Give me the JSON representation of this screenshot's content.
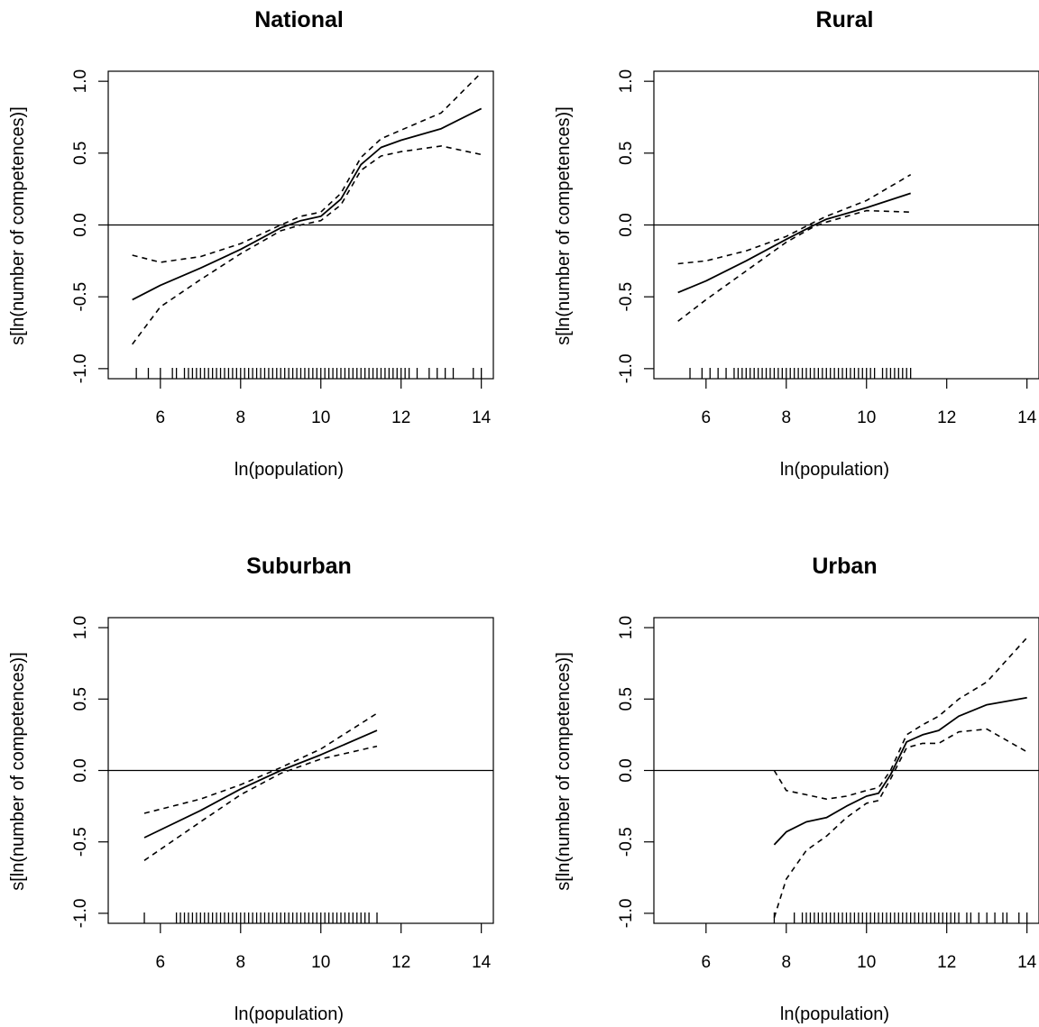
{
  "chart_data": [
    {
      "type": "line",
      "title": "National",
      "xlabel": "ln(population)",
      "ylabel": "s[ln(number of competences)]",
      "xlim": [
        4.7,
        14.3
      ],
      "ylim": [
        -1.07,
        1.07
      ],
      "xticks": [
        "6",
        "8",
        "10",
        "12",
        "14"
      ],
      "yticks": [
        "-1.0",
        "-0.5",
        "0.0",
        "0.5",
        "1.0"
      ],
      "reference_line": 0,
      "series": [
        {
          "style": "solid",
          "x": [
            5.3,
            6.0,
            7.0,
            8.0,
            9.0,
            9.5,
            10.0,
            10.5,
            11.0,
            11.5,
            12.0,
            13.0,
            14.0
          ],
          "y": [
            -0.52,
            -0.42,
            -0.3,
            -0.17,
            -0.02,
            0.03,
            0.06,
            0.18,
            0.42,
            0.54,
            0.59,
            0.67,
            0.81
          ]
        },
        {
          "style": "dashed",
          "x": [
            5.3,
            6.0,
            7.0,
            8.0,
            9.0,
            9.5,
            10.0,
            10.5,
            11.0,
            11.5,
            12.0,
            13.0,
            14.0
          ],
          "y": [
            -0.21,
            -0.26,
            -0.22,
            -0.13,
            0.0,
            0.06,
            0.09,
            0.22,
            0.47,
            0.6,
            0.66,
            0.78,
            1.06
          ]
        },
        {
          "style": "dashed",
          "x": [
            5.3,
            6.0,
            7.0,
            8.0,
            9.0,
            9.5,
            10.0,
            10.5,
            11.0,
            11.5,
            12.0,
            13.0,
            14.0
          ],
          "y": [
            -0.83,
            -0.57,
            -0.38,
            -0.2,
            -0.04,
            0.0,
            0.03,
            0.14,
            0.38,
            0.48,
            0.51,
            0.55,
            0.49
          ]
        }
      ],
      "rug": [
        5.4,
        5.7,
        6.0,
        6.3,
        6.4,
        6.6,
        6.7,
        6.8,
        6.9,
        7.0,
        7.1,
        7.2,
        7.3,
        7.4,
        7.5,
        7.6,
        7.7,
        7.8,
        7.9,
        8.0,
        8.1,
        8.2,
        8.3,
        8.4,
        8.5,
        8.6,
        8.7,
        8.8,
        8.9,
        9.0,
        9.1,
        9.2,
        9.3,
        9.4,
        9.5,
        9.6,
        9.7,
        9.8,
        9.9,
        10.0,
        10.1,
        10.2,
        10.3,
        10.4,
        10.5,
        10.6,
        10.7,
        10.8,
        10.9,
        11.0,
        11.1,
        11.2,
        11.3,
        11.4,
        11.5,
        11.6,
        11.7,
        11.8,
        11.9,
        12.0,
        12.1,
        12.2,
        12.4,
        12.7,
        12.9,
        13.1,
        13.3,
        13.8,
        14.0
      ]
    },
    {
      "type": "line",
      "title": "Rural",
      "xlabel": "ln(population)",
      "ylabel": "s[ln(number of competences)]",
      "xlim": [
        4.7,
        14.3
      ],
      "ylim": [
        -1.07,
        1.07
      ],
      "xticks": [
        "6",
        "8",
        "10",
        "12",
        "14"
      ],
      "yticks": [
        "-1.0",
        "-0.5",
        "0.0",
        "0.5",
        "1.0"
      ],
      "reference_line": 0,
      "series": [
        {
          "style": "solid",
          "x": [
            5.3,
            6.0,
            7.0,
            8.0,
            8.7,
            9.0,
            10.0,
            11.1
          ],
          "y": [
            -0.47,
            -0.39,
            -0.25,
            -0.1,
            0.0,
            0.04,
            0.12,
            0.22
          ]
        },
        {
          "style": "dashed",
          "x": [
            5.3,
            6.0,
            7.0,
            8.0,
            8.7,
            9.0,
            10.0,
            11.1
          ],
          "y": [
            -0.27,
            -0.25,
            -0.18,
            -0.08,
            0.02,
            0.06,
            0.17,
            0.35
          ]
        },
        {
          "style": "dashed",
          "x": [
            5.3,
            6.0,
            7.0,
            8.0,
            8.7,
            9.0,
            10.0,
            11.1
          ],
          "y": [
            -0.67,
            -0.52,
            -0.32,
            -0.12,
            -0.01,
            0.02,
            0.1,
            0.09
          ]
        }
      ],
      "rug": [
        5.6,
        5.9,
        6.1,
        6.3,
        6.5,
        6.7,
        6.8,
        6.9,
        7.0,
        7.1,
        7.2,
        7.3,
        7.4,
        7.5,
        7.6,
        7.7,
        7.8,
        7.9,
        8.0,
        8.1,
        8.2,
        8.3,
        8.4,
        8.5,
        8.6,
        8.7,
        8.8,
        8.9,
        9.0,
        9.1,
        9.2,
        9.3,
        9.4,
        9.5,
        9.6,
        9.7,
        9.8,
        9.9,
        10.0,
        10.1,
        10.2,
        10.4,
        10.5,
        10.6,
        10.7,
        10.8,
        10.9,
        11.0,
        11.1
      ]
    },
    {
      "type": "line",
      "title": "Suburban",
      "xlabel": "ln(population)",
      "ylabel": "s[ln(number of competences)]",
      "xlim": [
        4.7,
        14.3
      ],
      "ylim": [
        -1.07,
        1.07
      ],
      "xticks": [
        "6",
        "8",
        "10",
        "12",
        "14"
      ],
      "yticks": [
        "-1.0",
        "-0.5",
        "0.0",
        "0.5",
        "1.0"
      ],
      "reference_line": 0,
      "series": [
        {
          "style": "solid",
          "x": [
            5.6,
            7.0,
            8.0,
            9.0,
            10.0,
            11.4
          ],
          "y": [
            -0.47,
            -0.28,
            -0.13,
            0.0,
            0.11,
            0.28
          ]
        },
        {
          "style": "dashed",
          "x": [
            5.6,
            7.0,
            8.0,
            9.0,
            10.0,
            11.4
          ],
          "y": [
            -0.3,
            -0.2,
            -0.1,
            0.02,
            0.15,
            0.4
          ]
        },
        {
          "style": "dashed",
          "x": [
            5.6,
            7.0,
            8.0,
            9.0,
            10.0,
            11.4
          ],
          "y": [
            -0.63,
            -0.36,
            -0.17,
            -0.02,
            0.08,
            0.17
          ]
        }
      ],
      "rug": [
        5.6,
        6.4,
        6.5,
        6.6,
        6.7,
        6.8,
        6.9,
        7.0,
        7.1,
        7.2,
        7.3,
        7.4,
        7.5,
        7.6,
        7.7,
        7.8,
        7.9,
        8.0,
        8.1,
        8.2,
        8.3,
        8.4,
        8.5,
        8.6,
        8.7,
        8.8,
        8.9,
        9.0,
        9.1,
        9.2,
        9.3,
        9.4,
        9.5,
        9.6,
        9.7,
        9.8,
        9.9,
        10.0,
        10.1,
        10.2,
        10.3,
        10.4,
        10.5,
        10.6,
        10.7,
        10.8,
        10.9,
        11.0,
        11.1,
        11.2,
        11.4
      ]
    },
    {
      "type": "line",
      "title": "Urban",
      "xlabel": "ln(population)",
      "ylabel": "s[ln(number of competences)]",
      "xlim": [
        4.7,
        14.3
      ],
      "ylim": [
        -1.07,
        1.07
      ],
      "xticks": [
        "6",
        "8",
        "10",
        "12",
        "14"
      ],
      "yticks": [
        "-1.0",
        "-0.5",
        "0.0",
        "0.5",
        "1.0"
      ],
      "reference_line": 0,
      "series": [
        {
          "style": "solid",
          "x": [
            7.7,
            8.0,
            8.5,
            9.0,
            9.5,
            10.0,
            10.3,
            10.6,
            11.0,
            11.4,
            11.8,
            12.3,
            13.0,
            14.0
          ],
          "y": [
            -0.52,
            -0.43,
            -0.36,
            -0.33,
            -0.25,
            -0.18,
            -0.16,
            -0.03,
            0.2,
            0.25,
            0.28,
            0.38,
            0.46,
            0.51
          ]
        },
        {
          "style": "dashed",
          "x": [
            7.7,
            8.0,
            8.5,
            9.0,
            9.5,
            10.0,
            10.3,
            10.6,
            11.0,
            11.4,
            11.8,
            12.3,
            13.0,
            14.0
          ],
          "y": [
            0.0,
            -0.14,
            -0.17,
            -0.2,
            -0.18,
            -0.14,
            -0.12,
            0.0,
            0.25,
            0.32,
            0.38,
            0.5,
            0.62,
            0.93
          ]
        },
        {
          "style": "dashed",
          "x": [
            7.7,
            8.0,
            8.5,
            9.0,
            9.5,
            10.0,
            10.3,
            10.6,
            11.0,
            11.4,
            11.8,
            12.3,
            13.0,
            14.0
          ],
          "y": [
            -1.03,
            -0.76,
            -0.56,
            -0.46,
            -0.33,
            -0.23,
            -0.21,
            -0.06,
            0.16,
            0.19,
            0.19,
            0.27,
            0.29,
            0.13
          ]
        }
      ],
      "rug": [
        7.7,
        8.2,
        8.4,
        8.5,
        8.6,
        8.7,
        8.8,
        8.9,
        9.0,
        9.1,
        9.2,
        9.3,
        9.4,
        9.5,
        9.6,
        9.7,
        9.8,
        9.9,
        10.0,
        10.1,
        10.2,
        10.3,
        10.4,
        10.5,
        10.6,
        10.7,
        10.8,
        10.9,
        11.0,
        11.1,
        11.2,
        11.3,
        11.4,
        11.5,
        11.6,
        11.7,
        11.8,
        11.9,
        12.0,
        12.1,
        12.2,
        12.3,
        12.5,
        12.6,
        12.8,
        13.0,
        13.2,
        13.4,
        13.5,
        13.8,
        14.0
      ]
    }
  ]
}
